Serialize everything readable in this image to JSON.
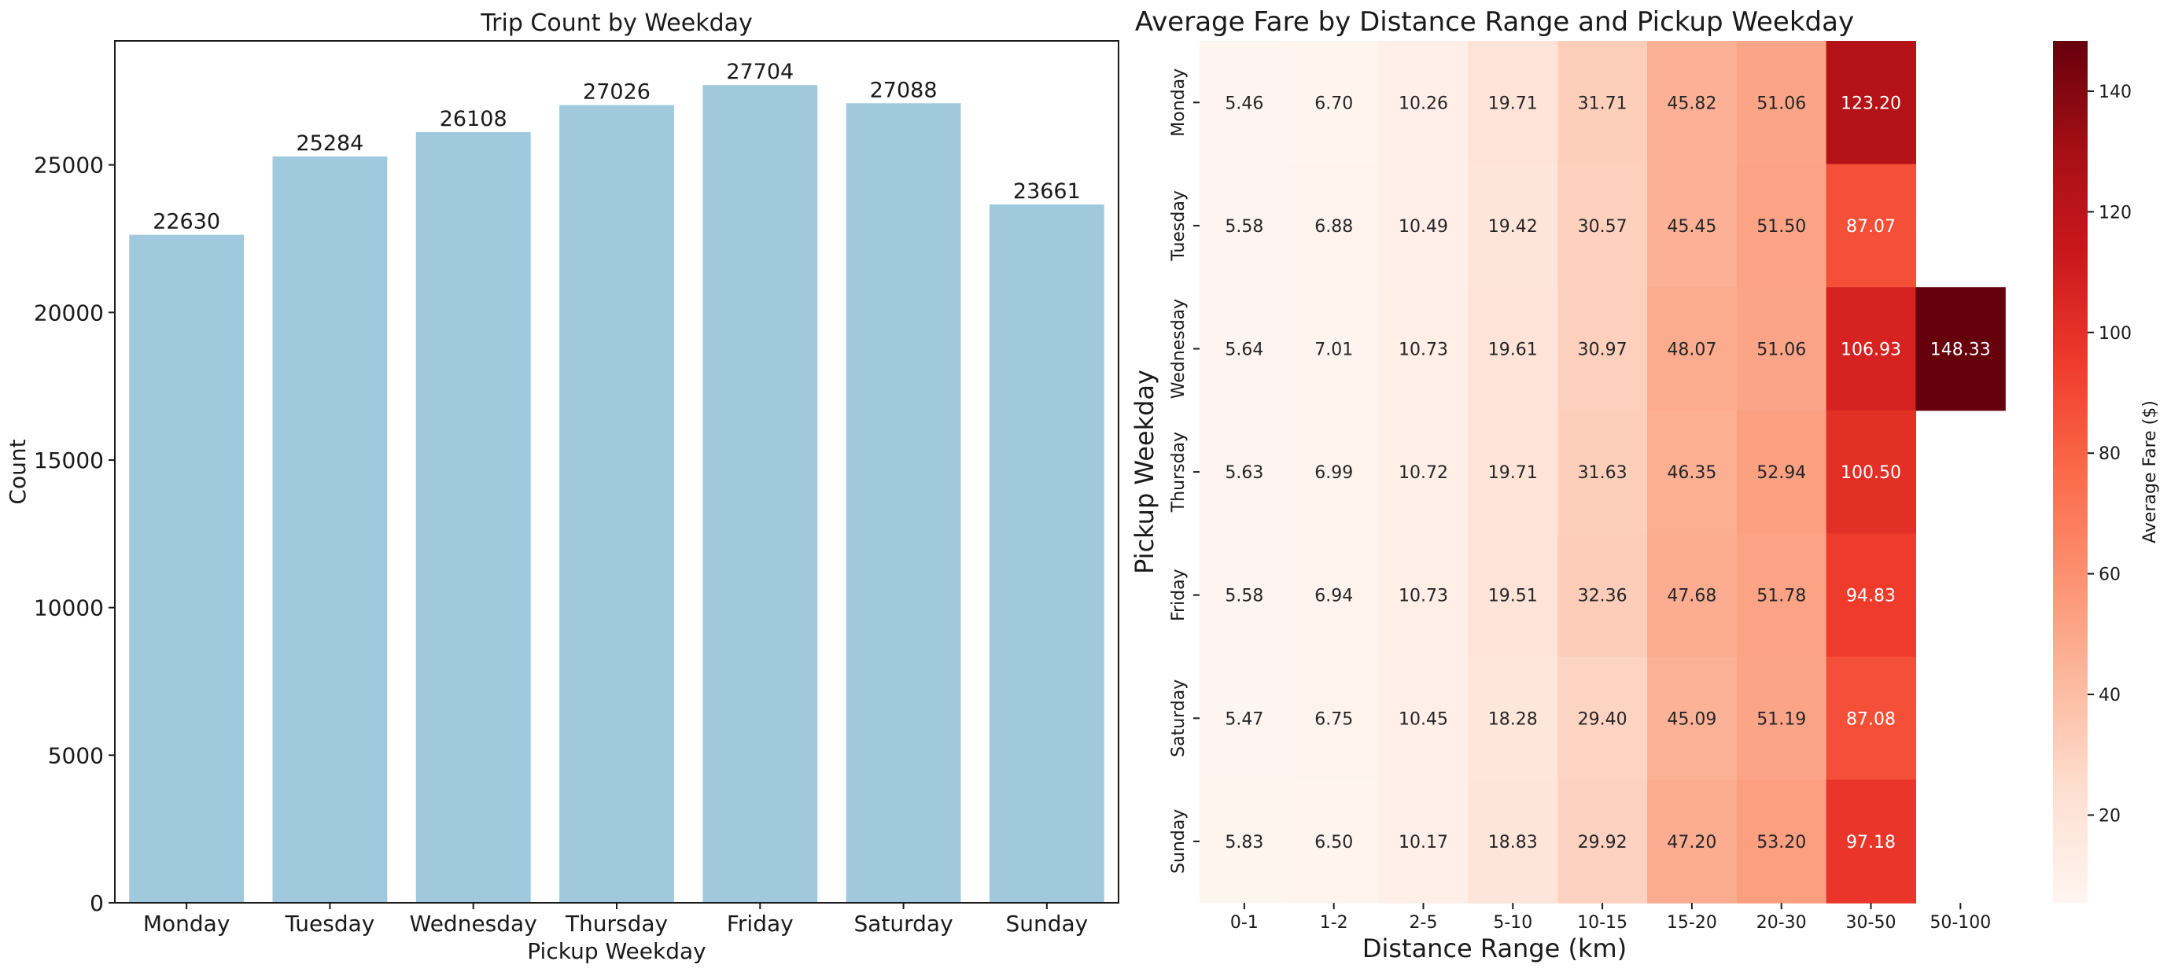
{
  "chart_data": [
    {
      "type": "bar",
      "title": "Trip Count by Weekday",
      "xlabel": "Pickup Weekday",
      "ylabel": "Count",
      "categories": [
        "Monday",
        "Tuesday",
        "Wednesday",
        "Thursday",
        "Friday",
        "Saturday",
        "Sunday"
      ],
      "values": [
        22630,
        25284,
        26108,
        27026,
        27704,
        27088,
        23661
      ],
      "data_labels": [
        "22630",
        "25284",
        "26108",
        "27026",
        "27704",
        "27088",
        "23661"
      ],
      "ylim": [
        0,
        29200
      ],
      "yticks": [
        0,
        5000,
        10000,
        15000,
        20000,
        25000
      ],
      "bar_color": "#a1c9de",
      "grid": false
    },
    {
      "type": "heatmap",
      "title": "Average Fare by Distance Range and Pickup Weekday",
      "xlabel": "Distance Range (km)",
      "ylabel": "Pickup Weekday",
      "x": [
        "0-1",
        "1-2",
        "2-5",
        "5-10",
        "10-15",
        "15-20",
        "20-30",
        "30-50",
        "50-100"
      ],
      "y": [
        "Monday",
        "Tuesday",
        "Wednesday",
        "Thursday",
        "Friday",
        "Saturday",
        "Sunday"
      ],
      "values": [
        [
          5.46,
          6.7,
          10.26,
          19.71,
          31.71,
          45.82,
          51.06,
          123.2,
          null
        ],
        [
          5.58,
          6.88,
          10.49,
          19.42,
          30.57,
          45.45,
          51.5,
          87.07,
          null
        ],
        [
          5.64,
          7.01,
          10.73,
          19.61,
          30.97,
          48.07,
          51.06,
          106.93,
          148.33
        ],
        [
          5.63,
          6.99,
          10.72,
          19.71,
          31.63,
          46.35,
          52.94,
          100.5,
          null
        ],
        [
          5.58,
          6.94,
          10.73,
          19.51,
          32.36,
          47.68,
          51.78,
          94.83,
          null
        ],
        [
          5.47,
          6.75,
          10.45,
          18.28,
          29.4,
          45.09,
          51.19,
          87.08,
          null
        ],
        [
          5.83,
          6.5,
          10.17,
          18.83,
          29.92,
          47.2,
          53.2,
          97.18,
          null
        ]
      ],
      "colormap": "Reds",
      "colorbar": {
        "label": "Average Fare ($)",
        "range": [
          5.46,
          148.33
        ],
        "ticks": [
          20,
          40,
          60,
          80,
          100,
          120,
          140
        ]
      }
    }
  ]
}
